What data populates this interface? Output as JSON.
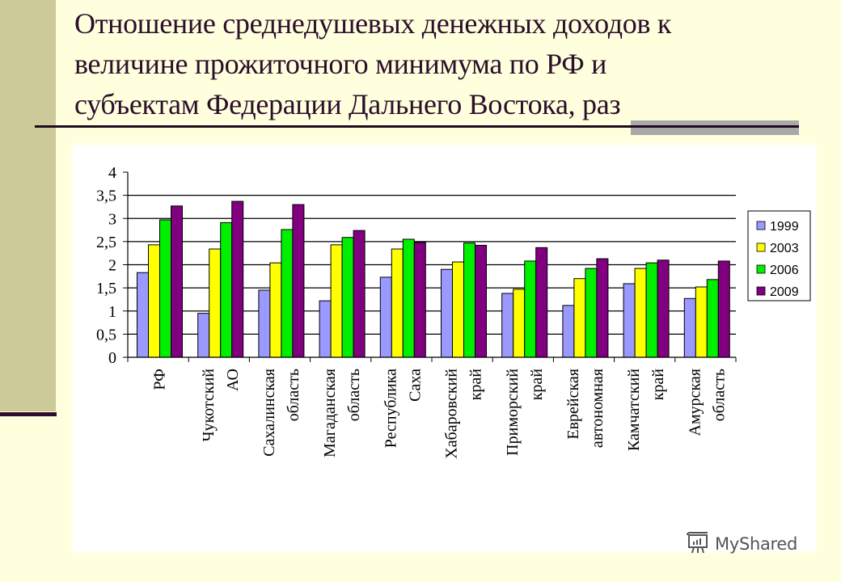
{
  "slide": {
    "title": "Отношение среднедушевых денежных доходов к величине прожиточного минимума по РФ и субъектам Федерации Дальнего Востока, раз",
    "title_lines": [
      "Отношение среднедушевых денежных доходов к",
      "величине прожиточного минимума по РФ и",
      "субъектам Федерации Дальнего Востока, раз"
    ],
    "watermark": "MyShared"
  },
  "colors": {
    "1999": "#9999FF",
    "2003": "#FFFF00",
    "2006": "#00EE00",
    "2009": "#800080",
    "side_bar": "#CBCA98",
    "background": "#FFFFDD"
  },
  "chart_data": {
    "type": "bar",
    "title": "Отношение среднедушевых денежных доходов к величине прожиточного минимума по РФ и субъектам Федерации Дальнего Востока, раз",
    "xlabel": "",
    "ylabel": "",
    "ylim": [
      0,
      4
    ],
    "yticks": [
      "0",
      "0,5",
      "1",
      "1,5",
      "2",
      "2,5",
      "3",
      "3,5",
      "4"
    ],
    "grid": true,
    "legend_position": "right",
    "categories": [
      "РФ",
      "Чукотский АО",
      "Сахалинская область",
      "Магаданская область",
      "Республика Саха",
      "Хабаровский край",
      "Приморский край",
      "Еврейская автономная",
      "Камчатский край",
      "Амурская область"
    ],
    "category_lines": [
      [
        "РФ"
      ],
      [
        "Чукотский",
        "АО"
      ],
      [
        "Сахалинская",
        "область"
      ],
      [
        "Магаданская",
        "область"
      ],
      [
        "Республика",
        "Саха"
      ],
      [
        "Хабаровский",
        "край"
      ],
      [
        "Приморский",
        "край"
      ],
      [
        "Еврейская",
        "автономная"
      ],
      [
        "Камчатский",
        "край"
      ],
      [
        "Амурская",
        "область"
      ]
    ],
    "series": [
      {
        "name": "1999",
        "values": [
          1.83,
          0.95,
          1.45,
          1.22,
          1.73,
          1.9,
          1.38,
          1.12,
          1.59,
          1.27
        ]
      },
      {
        "name": "2003",
        "values": [
          2.43,
          2.34,
          2.04,
          2.43,
          2.34,
          2.06,
          1.47,
          1.7,
          1.92,
          1.52
        ]
      },
      {
        "name": "2006",
        "values": [
          2.97,
          2.91,
          2.76,
          2.59,
          2.55,
          2.47,
          2.08,
          1.92,
          2.04,
          1.68
        ]
      },
      {
        "name": "2009",
        "values": [
          3.27,
          3.37,
          3.3,
          2.74,
          2.48,
          2.42,
          2.37,
          2.13,
          2.1,
          2.08
        ]
      }
    ]
  }
}
